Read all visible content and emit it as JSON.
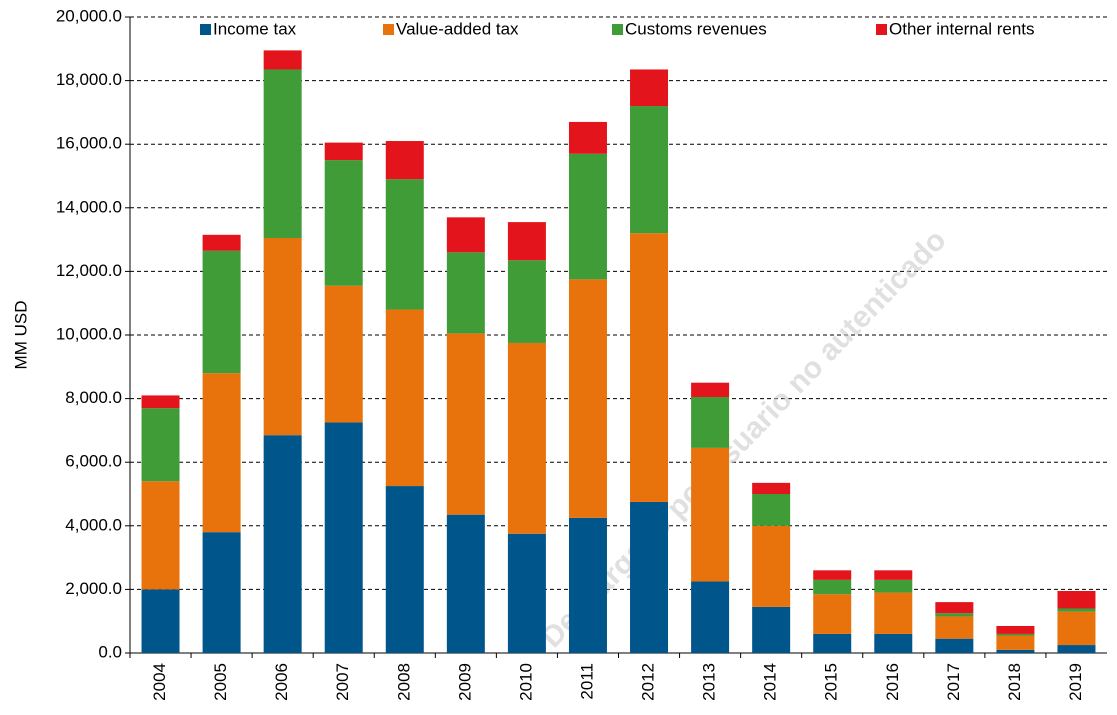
{
  "chart_data": {
    "type": "stacked_bar",
    "y_label": "MM USD",
    "watermark": "Descargado por usuario no autenticado",
    "categories": [
      "2004",
      "2005",
      "2006",
      "2007",
      "2008",
      "2009",
      "2010",
      "2011",
      "2012",
      "2013",
      "2014",
      "2015",
      "2016",
      "2017",
      "2018",
      "2019"
    ],
    "series": [
      {
        "name": "Income tax",
        "color": "#00568b",
        "values": [
          2000,
          3800,
          6850,
          7250,
          5250,
          4350,
          3750,
          4250,
          4750,
          2250,
          1450,
          600,
          600,
          450,
          100,
          250
        ]
      },
      {
        "name": "Value-added tax",
        "color": "#e8720c",
        "values": [
          3400,
          5000,
          6200,
          4300,
          5550,
          5700,
          6000,
          7500,
          8450,
          4200,
          2550,
          1250,
          1300,
          700,
          450,
          1050
        ]
      },
      {
        "name": "Customs revenues",
        "color": "#409c36",
        "values": [
          2300,
          3850,
          5300,
          3950,
          4100,
          2550,
          2600,
          3950,
          4000,
          1600,
          1000,
          450,
          400,
          100,
          50,
          100
        ]
      },
      {
        "name": "Other internal rents",
        "color": "#e3141b",
        "values": [
          400,
          500,
          600,
          550,
          1200,
          1100,
          1200,
          1000,
          1150,
          450,
          350,
          300,
          300,
          350,
          250,
          550
        ]
      }
    ],
    "ylim": [
      0,
      20000
    ],
    "yticks": [
      {
        "value": 0,
        "label": "0.0"
      },
      {
        "value": 2000,
        "label": "2,000.0"
      },
      {
        "value": 4000,
        "label": "4,000.0"
      },
      {
        "value": 6000,
        "label": "6,000.0"
      },
      {
        "value": 8000,
        "label": "8,000.0"
      },
      {
        "value": 10000,
        "label": "10,000.0"
      },
      {
        "value": 12000,
        "label": "12,000.0"
      },
      {
        "value": 14000,
        "label": "14,000.0"
      },
      {
        "value": 16000,
        "label": "16,000.0"
      },
      {
        "value": 18000,
        "label": "18,000.0"
      },
      {
        "value": 20000,
        "label": "20,000.0"
      }
    ],
    "grid": true,
    "legend": "top"
  }
}
